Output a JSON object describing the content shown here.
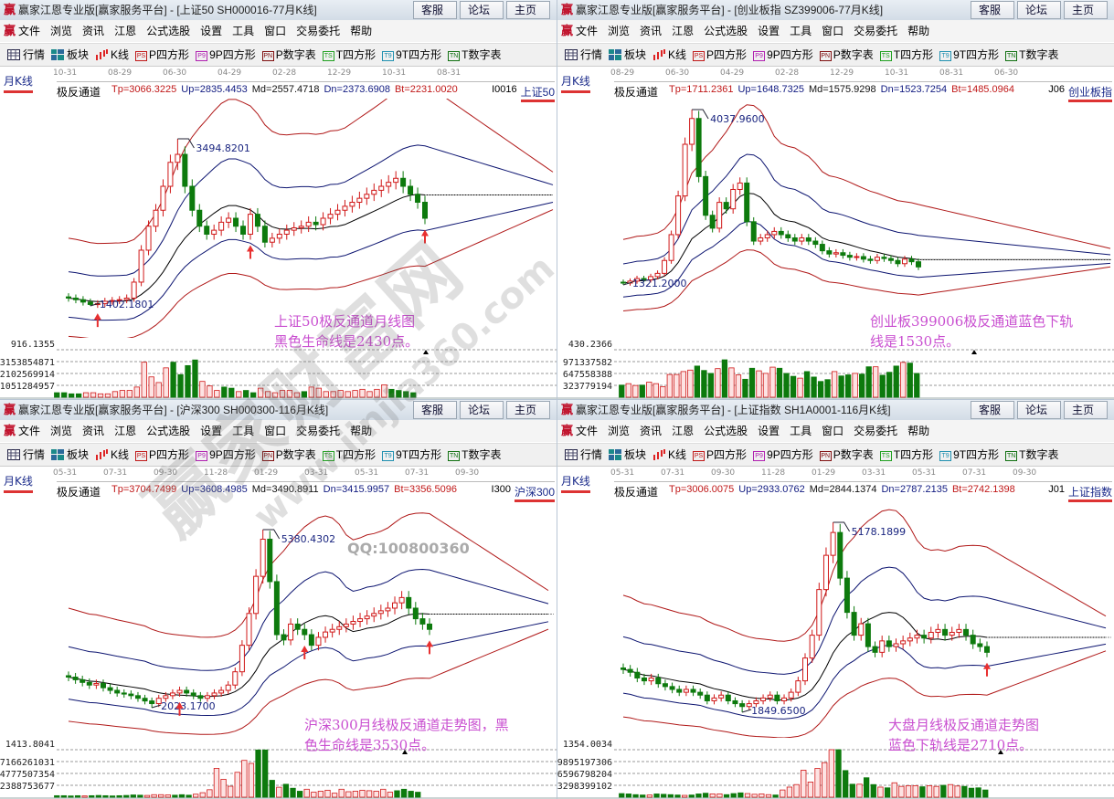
{
  "app_logo": "赢",
  "buttons": [
    "客服",
    "论坛",
    "主页"
  ],
  "menu": [
    "文件",
    "浏览",
    "资讯",
    "江恩",
    "公式选股",
    "设置",
    "工具",
    "窗口",
    "交易委托",
    "帮助"
  ],
  "toolbar": [
    {
      "icon": "grid-icon",
      "icon_text": "",
      "label": "行情"
    },
    {
      "icon": "blocks-icon",
      "icon_text": "",
      "label": "板块"
    },
    {
      "icon": "candles-icon",
      "icon_text": "",
      "label": "K线"
    },
    {
      "icon": "ps-icon",
      "icon_text": "PS",
      "label": "P四方形",
      "color": "#c01818"
    },
    {
      "icon": "p9-icon",
      "icon_text": "P9",
      "label": "9P四方形",
      "color": "#b020b0"
    },
    {
      "icon": "pn-icon",
      "icon_text": "PN",
      "label": "P数字表",
      "color": "#801010"
    },
    {
      "icon": "ts-icon",
      "icon_text": "TS",
      "label": "T四方形",
      "color": "#20a020"
    },
    {
      "icon": "t9-icon",
      "icon_text": "T9",
      "label": "9T四方形",
      "color": "#2090b0"
    },
    {
      "icon": "tn-icon",
      "icon_text": "TN",
      "label": "T数字表",
      "color": "#107010"
    }
  ],
  "period_label": "月K线",
  "indicator_name": "极反通道",
  "colors": {
    "up": "#d01818",
    "down": "#0d7a0d",
    "annotation": "#c94fd0",
    "upper_band": "#b01818",
    "inner_band": "#0c1470",
    "mid_line": "#000000"
  },
  "panels": [
    {
      "title": "赢家江恩专业版[赢家服务平台] - [上证50  SH000016-77月K线]",
      "dates": [
        "10-31",
        "08-29",
        "06-30",
        "04-29",
        "02-28",
        "12-29",
        "10-31",
        "08-31"
      ],
      "tp": "Tp=3066.3225",
      "up": "Up=2835.4453",
      "md": "Md=2557.4718",
      "dn": "Dn=2373.6908",
      "bt": "Bt=2231.0020",
      "code_fragment": "I0016",
      "name": "上证50",
      "high_label": "3494.8201",
      "low_label": "1402.1801",
      "annotation": [
        "上证50极反通道月线图",
        "黑色生命线是2430点。"
      ],
      "vol_top": "916.1355",
      "vol_ticks": [
        "3153854871",
        "2102569914",
        "1051284957"
      ],
      "closes": [
        1500,
        1480,
        1450,
        1420,
        1430,
        1460,
        1470,
        1480,
        1500,
        1700,
        2100,
        2400,
        2600,
        2900,
        3200,
        3300,
        2900,
        2600,
        2400,
        2300,
        2350,
        2450,
        2500,
        2400,
        2300,
        2550,
        2400,
        2200,
        2250,
        2300,
        2350,
        2380,
        2400,
        2450,
        2420,
        2500,
        2550,
        2600,
        2650,
        2700,
        2750,
        2800,
        2850,
        2900,
        2950,
        3000,
        2900,
        2800,
        2700,
        2500
      ],
      "volumes": [
        400000000.0,
        400000000.0,
        300000000.0,
        300000000.0,
        400000000.0,
        400000000.0,
        300000000.0,
        300000000.0,
        500000000.0,
        600000000.0,
        600000000.0,
        900000000.0,
        3100000000.0,
        1800000000.0,
        1300000000.0,
        2600000000.0,
        3100000000.0,
        2000000000.0,
        2800000000.0,
        3300000000.0,
        1400000000.0,
        1000000000.0,
        600000000.0,
        900000000.0,
        800000000.0,
        500000000.0,
        600000000.0,
        400000000.0,
        800000000.0,
        500000000.0,
        400000000.0,
        600000000.0,
        600000000.0,
        400000000.0,
        500000000.0,
        900000000.0,
        800000000.0,
        500000000.0,
        500000000.0,
        600000000.0,
        500000000.0,
        600000000.0,
        700000000.0,
        500000000.0,
        700000000.0,
        1100000000.0,
        700000000.0,
        600000000.0,
        500000000.0,
        400000000.0
      ]
    },
    {
      "title": "赢家江恩专业版[赢家服务平台] - [创业板指  SZ399006-77月K线]",
      "dates": [
        "08-29",
        "06-30",
        "04-29",
        "02-28",
        "12-29",
        "10-31",
        "08-31",
        "06-30"
      ],
      "tp": "Tp=1711.2361",
      "up": "Up=1648.7325",
      "md": "Md=1575.9298",
      "dn": "Dn=1523.7254",
      "bt": "Bt=1485.0964",
      "code_fragment": "J06",
      "name": "创业板指",
      "high_label": "4037.9600",
      "low_label": "1321.2000",
      "annotation": [
        "创业板399006极反通道蓝色下轨",
        "线是1530点。"
      ],
      "vol_top": "430.2366",
      "vol_ticks": [
        "971337582",
        "647558388",
        "323779194"
      ],
      "closes": [
        1350,
        1380,
        1420,
        1400,
        1450,
        1500,
        1700,
        2100,
        2700,
        3500,
        3900,
        3000,
        2400,
        2200,
        2600,
        2500,
        2800,
        2900,
        2300,
        2000,
        2050,
        2100,
        2150,
        2100,
        2050,
        2000,
        2050,
        2000,
        1950,
        1850,
        1800,
        1820,
        1780,
        1750,
        1760,
        1720,
        1700,
        1750,
        1730,
        1700,
        1650,
        1720,
        1680,
        1600
      ],
      "volumes": [
        330000000.0,
        370000000.0,
        320000000.0,
        330000000.0,
        410000000.0,
        370000000.0,
        290000000.0,
        620000000.0,
        620000000.0,
        700000000.0,
        740000000.0,
        850000000.0,
        730000000.0,
        650000000.0,
        780000000.0,
        1020000000.0,
        800000000.0,
        610000000.0,
        490000000.0,
        790000000.0,
        720000000.0,
        650000000.0,
        820000000.0,
        790000000.0,
        650000000.0,
        570000000.0,
        520000000.0,
        700000000.0,
        550000000.0,
        430000000.0,
        480000000.0,
        700000000.0,
        580000000.0,
        610000000.0,
        650000000.0,
        630000000.0,
        830000000.0,
        830000000.0,
        600000000.0,
        680000000.0,
        850000000.0,
        950000000.0,
        930000000.0,
        650000000.0
      ]
    },
    {
      "title": "赢家江恩专业版[赢家服务平台] - [沪深300  SH000300-116月K线]",
      "dates": [
        "05-31",
        "07-31",
        "09-30",
        "11-28",
        "01-29",
        "03-31",
        "05-31",
        "07-31",
        "09-30"
      ],
      "tp": "Tp=3704.7499",
      "up": "Up=3608.4985",
      "md": "Md=3490.8911",
      "dn": "Dn=3415.9957",
      "bt": "Bt=3356.5096",
      "code_fragment": "I300",
      "name": "沪深300",
      "high_label": "5380.4302",
      "low_label": "2023.1700",
      "annotation": [
        "沪深300月线极反通道走势图，黑",
        "色生命线是3530点。"
      ],
      "vol_top": "1413.8041",
      "vol_ticks": [
        "7166261031",
        "4777507354",
        "2388753677"
      ],
      "closes": [
        2600,
        2550,
        2500,
        2450,
        2480,
        2400,
        2350,
        2300,
        2280,
        2250,
        2200,
        2150,
        2100,
        2200,
        2250,
        2300,
        2350,
        2300,
        2250,
        2200,
        2250,
        2300,
        2350,
        2450,
        2700,
        3200,
        3800,
        4500,
        5200,
        4400,
        3400,
        3300,
        3600,
        3500,
        3400,
        3200,
        3350,
        3450,
        3500,
        3550,
        3600,
        3650,
        3700,
        3750,
        3800,
        3850,
        3900,
        4000,
        4100,
        3900,
        3700,
        3600,
        3500
      ],
      "volumes": [
        300000000.0,
        300000000.0,
        250000000.0,
        300000000.0,
        250000000.0,
        300000000.0,
        350000000.0,
        300000000.0,
        250000000.0,
        300000000.0,
        350000000.0,
        450000000.0,
        400000000.0,
        350000000.0,
        500000000.0,
        500000000.0,
        450000000.0,
        400000000.0,
        500000000.0,
        400000000.0,
        600000000.0,
        900000000.0,
        1500000000.0,
        5800000000.0,
        3600000000.0,
        2200000000.0,
        5000000000.0,
        7400000000.0,
        6800000000.0,
        9500000000.0,
        9500000000.0,
        3400000000.0,
        2000000000.0,
        2600000000.0,
        1800000000.0,
        1200000000.0,
        1600000000.0,
        1000000000.0,
        1200000000.0,
        1400000000.0,
        800000000.0,
        1600000000.0,
        1100000000.0,
        1200000000.0,
        1400000000.0,
        1300000000.0,
        1200000000.0,
        1600000000.0,
        1000000000.0,
        1300000000.0,
        1600000000.0,
        1200000000.0,
        1000000000.0
      ]
    },
    {
      "title": "赢家江恩专业版[赢家服务平台] - [上证指数  SH1A0001-116月K线]",
      "dates": [
        "05-31",
        "07-31",
        "09-30",
        "11-28",
        "01-29",
        "03-31",
        "05-31",
        "07-31",
        "09-30"
      ],
      "tp": "Tp=3006.0075",
      "up": "Up=2933.0762",
      "md": "Md=2844.1374",
      "dn": "Dn=2787.2135",
      "bt": "Bt=2742.1398",
      "code_fragment": "J01",
      "name": "上证指数",
      "high_label": "5178.1899",
      "low_label": "1849.6500",
      "annotation": [
        "大盘月线极反通道走势图",
        "蓝色下轨线是2710点。"
      ],
      "vol_top": "1354.0034",
      "vol_ticks": [
        "9895197306",
        "6596798204",
        "3298399102"
      ],
      "closes": [
        2600,
        2550,
        2450,
        2400,
        2450,
        2350,
        2300,
        2250,
        2200,
        2250,
        2200,
        2150,
        2050,
        2100,
        2150,
        2050,
        2000,
        1950,
        2000,
        2050,
        2100,
        2150,
        2050,
        2100,
        2200,
        2400,
        2800,
        3200,
        4000,
        4600,
        5000,
        4200,
        3600,
        3200,
        3400,
        3000,
        2900,
        3100,
        3000,
        3050,
        3100,
        3150,
        3200,
        3150,
        3250,
        3300,
        3200,
        3250,
        3300,
        3200,
        3050,
        3000,
        2900
      ],
      "volumes": [
        1000000000.0,
        900000000.0,
        700000000.0,
        600000000.0,
        600000000.0,
        900000000.0,
        800000000.0,
        700000000.0,
        600000000.0,
        500000000.0,
        600000000.0,
        900000000.0,
        1100000000.0,
        900000000.0,
        900000000.0,
        700000000.0,
        1000000000.0,
        1200000000.0,
        1000000000.0,
        800000000.0,
        900000000.0,
        700000000.0,
        600000000.0,
        2000000000.0,
        2800000000.0,
        3500000000.0,
        7500000000.0,
        4200000000.0,
        8000000000.0,
        9600000000.0,
        13200000000.0,
        13200000000.0,
        7400000000.0,
        3600000000.0,
        3600000000.0,
        5400000000.0,
        3500000000.0,
        2800000000.0,
        2600000000.0,
        4000000000.0,
        3000000000.0,
        3200000000.0,
        3200000000.0,
        2900000000.0,
        3200000000.0,
        3000000000.0,
        3300000000.0,
        3500000000.0,
        3100000000.0,
        3000000000.0,
        2500000000.0,
        2600000000.0,
        2000000000.0
      ]
    }
  ],
  "watermark": {
    "brand": "赢家财富网",
    "url": "www.jinjia360.com"
  },
  "qq": "QQ:100800360"
}
